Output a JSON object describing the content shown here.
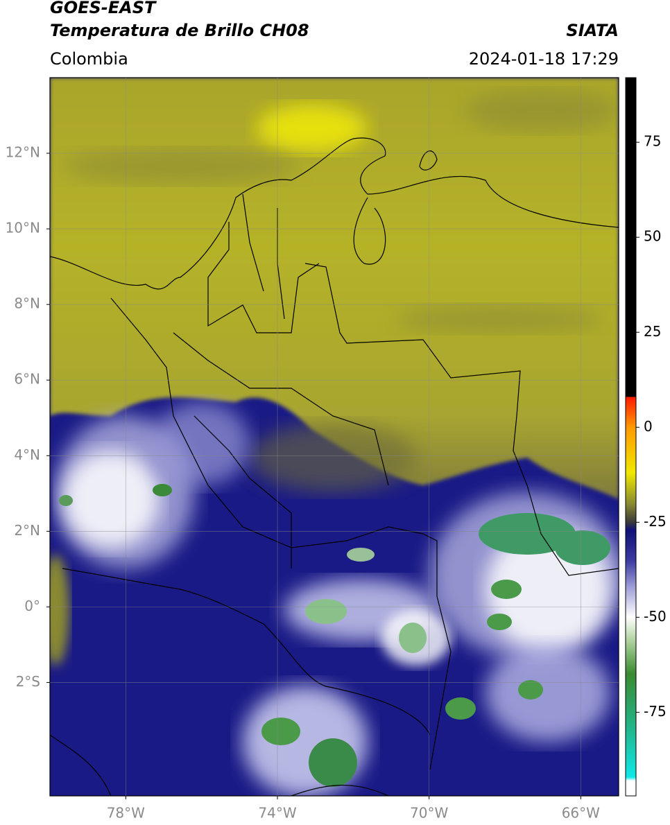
{
  "header": {
    "title_line1": "GOES-EAST",
    "title_line2": "Temperatura de Brillo CH08",
    "source": "SIATA",
    "region": "Colombia",
    "datetime": "2024-01-18 17:29"
  },
  "map": {
    "xlim": [
      -80,
      -65
    ],
    "ylim": [
      -5,
      14
    ],
    "grid": true,
    "xticks": [
      {
        "value": -78,
        "label": "78°W"
      },
      {
        "value": -74,
        "label": "74°W"
      },
      {
        "value": -70,
        "label": "70°W"
      },
      {
        "value": -66,
        "label": "66°W"
      }
    ],
    "yticks": [
      {
        "value": 12,
        "label": "12°N"
      },
      {
        "value": 10,
        "label": "10°N"
      },
      {
        "value": 8,
        "label": "8°N"
      },
      {
        "value": 6,
        "label": "6°N"
      },
      {
        "value": 4,
        "label": "4°N"
      },
      {
        "value": 2,
        "label": "2°N"
      },
      {
        "value": 0,
        "label": "0°"
      },
      {
        "value": -2,
        "label": "2°S"
      }
    ]
  },
  "colorbar": {
    "ylim": [
      -97,
      92
    ],
    "yticks": [
      75,
      50,
      25,
      0,
      -25,
      -50,
      -75
    ]
  }
}
